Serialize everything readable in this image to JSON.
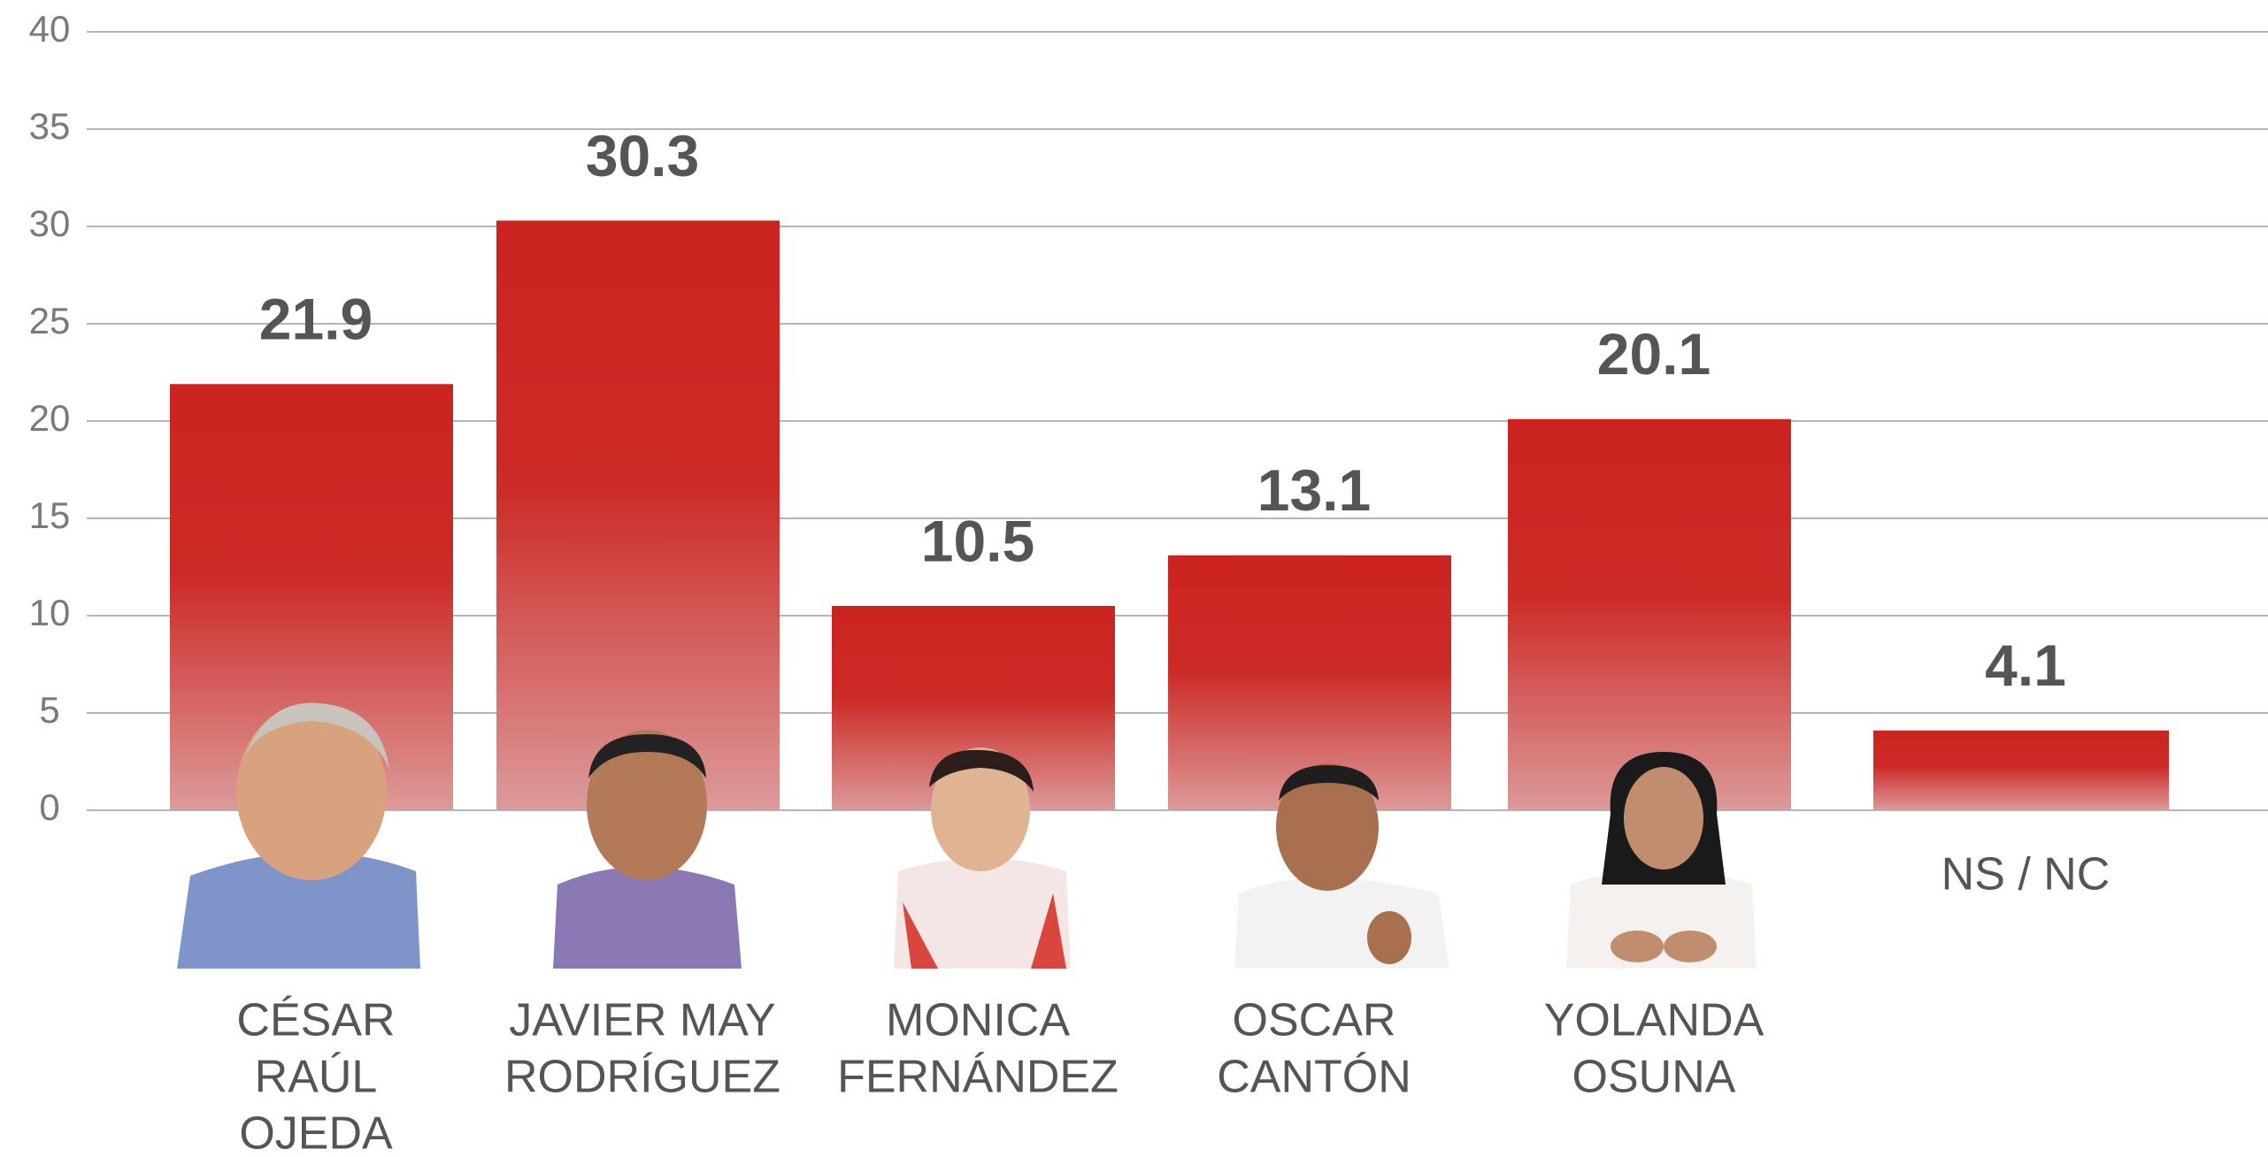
{
  "chart_data": {
    "type": "bar",
    "categories": [
      [
        "CÉSAR",
        "RAÚL",
        "OJEDA"
      ],
      [
        "JAVIER MAY",
        "RODRÍGUEZ"
      ],
      [
        "MONICA",
        "FERNÁNDEZ"
      ],
      [
        "OSCAR",
        "CANTÓN"
      ],
      [
        "YOLANDA",
        "OSUNA"
      ],
      [
        "NS / NC"
      ]
    ],
    "values": [
      21.9,
      30.3,
      10.5,
      13.1,
      20.1,
      4.1
    ],
    "color": "#cc2320",
    "ylim": [
      0,
      40
    ],
    "yticks": [
      0,
      5,
      10,
      15,
      20,
      25,
      30,
      35,
      40
    ],
    "grid": true
  }
}
